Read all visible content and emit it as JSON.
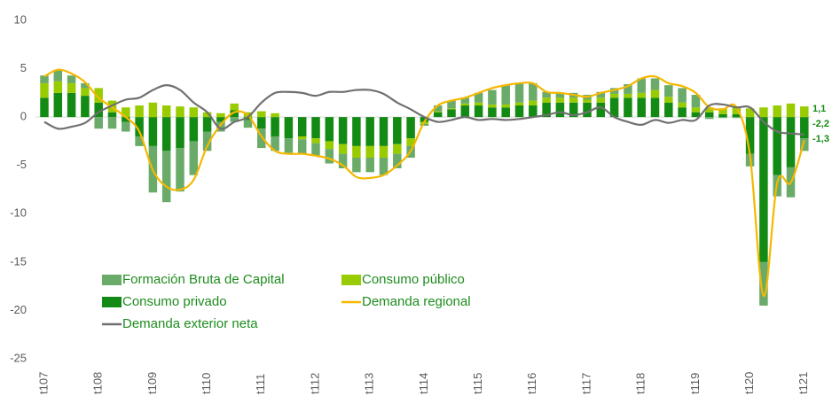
{
  "chart_data": {
    "type": "bar",
    "categories": [
      "t107",
      null,
      null,
      null,
      "t108",
      null,
      null,
      null,
      "t109",
      null,
      null,
      null,
      "t110",
      null,
      null,
      null,
      "t111",
      null,
      null,
      null,
      "t112",
      null,
      null,
      null,
      "t113",
      null,
      null,
      null,
      "t114",
      null,
      null,
      null,
      "t115",
      null,
      null,
      null,
      "t116",
      null,
      null,
      null,
      "t117",
      null,
      null,
      null,
      "t118",
      null,
      null,
      null,
      "t119",
      null,
      null,
      null,
      "t120",
      null,
      null,
      null,
      "t121"
    ],
    "series": [
      {
        "name": "Formación Bruta de Capital",
        "color": "#6aab6a",
        "kind": "bar",
        "values": [
          0.8,
          1.2,
          0.8,
          0.5,
          -1.2,
          -1.2,
          -1,
          -1,
          -4.8,
          -5.3,
          -4.5,
          -3.5,
          -2,
          -1,
          -0.5,
          -0.8,
          -2,
          -1.5,
          -1.5,
          -1.5,
          -1.3,
          -1.5,
          -1.5,
          -1.5,
          -1.5,
          -1.8,
          -1.5,
          -1.2,
          -0.2,
          0.6,
          0.8,
          0.6,
          1,
          1.5,
          2,
          2,
          1.8,
          0.6,
          0.5,
          0.5,
          0.5,
          0.6,
          0.6,
          1,
          1.5,
          1.2,
          1.2,
          1.5,
          1.3,
          -0.2,
          -0.1,
          -0.1,
          -1.3,
          -4.5,
          -2.2,
          -3.1,
          -1.3
        ]
      },
      {
        "name": "Consumo público",
        "color": "#99cc00",
        "kind": "bar",
        "values": [
          1.5,
          1.2,
          1,
          0.8,
          1.5,
          1.2,
          1,
          1.2,
          1.5,
          1.2,
          1.1,
          1,
          0.5,
          0.4,
          0.7,
          0.5,
          0.6,
          0.4,
          0,
          -0.3,
          -0.5,
          -0.8,
          -1,
          -1.2,
          -1.2,
          -1.2,
          -1,
          -0.8,
          -0.2,
          0.1,
          0.1,
          0.2,
          0.3,
          0.3,
          0.3,
          0.3,
          0.5,
          0.5,
          0.5,
          0.5,
          0.3,
          0.5,
          0.4,
          0.4,
          0.5,
          0.8,
          0.6,
          0.5,
          0.5,
          0.5,
          0.6,
          0.7,
          0.9,
          1,
          1.2,
          1.4,
          1.1
        ]
      },
      {
        "name": "Consumo privado",
        "color": "#138a13",
        "kind": "bar",
        "values": [
          2,
          2.5,
          2.5,
          2.2,
          1.5,
          0.5,
          -0.5,
          -2,
          -3,
          -3.5,
          -3.2,
          -2.5,
          -1.5,
          -0.5,
          0.7,
          -0.3,
          -1.2,
          -2,
          -2.2,
          -2,
          -2.2,
          -2.5,
          -2.8,
          -3,
          -3,
          -3,
          -2.8,
          -2.2,
          -0.5,
          0.5,
          0.8,
          1.2,
          1.2,
          1,
          1,
          1.2,
          1.2,
          1.5,
          1.5,
          1.5,
          1.5,
          1.5,
          2,
          2,
          2,
          2,
          1.5,
          1,
          0.5,
          0.5,
          0.3,
          0.3,
          -3.8,
          -15,
          -6,
          -5.2,
          -2.2
        ]
      },
      {
        "name": "Demanda regional",
        "color": "#f5b800",
        "kind": "line",
        "values": [
          4.2,
          4.9,
          4.5,
          3.6,
          2,
          1,
          0,
          -1.5,
          -5.5,
          -7.2,
          -7.5,
          -6.5,
          -3,
          -0.8,
          0.5,
          0.2,
          -2,
          -3.5,
          -3.8,
          -3.8,
          -4,
          -4.3,
          -5,
          -6.2,
          -6.3,
          -6,
          -5,
          -3.5,
          -0.5,
          1.2,
          1.7,
          2,
          2.5,
          3,
          3.3,
          3.5,
          3.5,
          2.6,
          2.5,
          2.3,
          2.1,
          2.5,
          2.8,
          3.2,
          4,
          4.2,
          3.5,
          3.2,
          2.5,
          1,
          0.8,
          1,
          -4,
          -18.5,
          -6.8,
          -6.8,
          -2.4
        ]
      },
      {
        "name": "Demanda exterior neta",
        "color": "#707070",
        "kind": "line",
        "values": [
          -0.5,
          -1.2,
          -1,
          -0.6,
          0.5,
          1.2,
          1.8,
          2,
          2.8,
          3.3,
          2.8,
          1.5,
          0.5,
          -1.2,
          -0.5,
          0,
          1.5,
          2.5,
          2.6,
          2.5,
          2.2,
          2.6,
          2.6,
          2.8,
          2.8,
          2.4,
          1.5,
          0.8,
          0,
          -0.5,
          -0.3,
          0,
          -0.3,
          -0.2,
          -0.3,
          -0.2,
          0,
          0.2,
          0.5,
          0.2,
          0.5,
          1,
          0,
          -0.5,
          -0.8,
          -0.3,
          -0.6,
          -0.3,
          -0.3,
          1.2,
          1.3,
          1,
          1,
          -0.5,
          -1.5,
          -1.7,
          -1.8
        ]
      }
    ],
    "annotations": [
      "1,1",
      "-2,2",
      "-1,3"
    ],
    "annotation_color": "#138a13",
    "ylim": [
      -25,
      10
    ],
    "yticks": [
      -25,
      -20,
      -15,
      -10,
      -5,
      0,
      5,
      10
    ],
    "grid": false
  }
}
